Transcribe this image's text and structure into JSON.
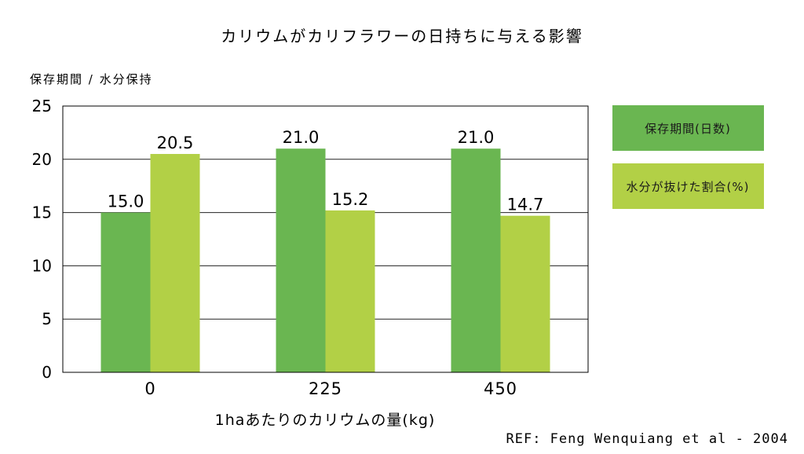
{
  "chart_data": {
    "type": "bar",
    "title": "カリウムがカリフラワーの日持ちに与える影響",
    "ylabel": "保存期間 / 水分保持",
    "xlabel": "1haあたりのカリウムの量(kg)",
    "categories": [
      "0",
      "225",
      "450"
    ],
    "series": [
      {
        "name": "保存期間(日数)",
        "values": [
          15.0,
          21.0,
          21.0
        ],
        "labels": [
          "15.0",
          "21.0",
          "21.0"
        ],
        "color": "#6ab651"
      },
      {
        "name": "水分が抜けた割合(%)",
        "values": [
          20.5,
          15.2,
          14.7
        ],
        "labels": [
          "20.5",
          "15.2",
          "14.7"
        ],
        "color": "#b2d046"
      }
    ],
    "ylim": [
      0,
      25
    ],
    "yticks": [
      "0",
      "5",
      "10",
      "15",
      "20",
      "25"
    ],
    "grid": true,
    "legend_position": "right"
  },
  "reference": "REF: Feng Wenquiang et al - 2004"
}
